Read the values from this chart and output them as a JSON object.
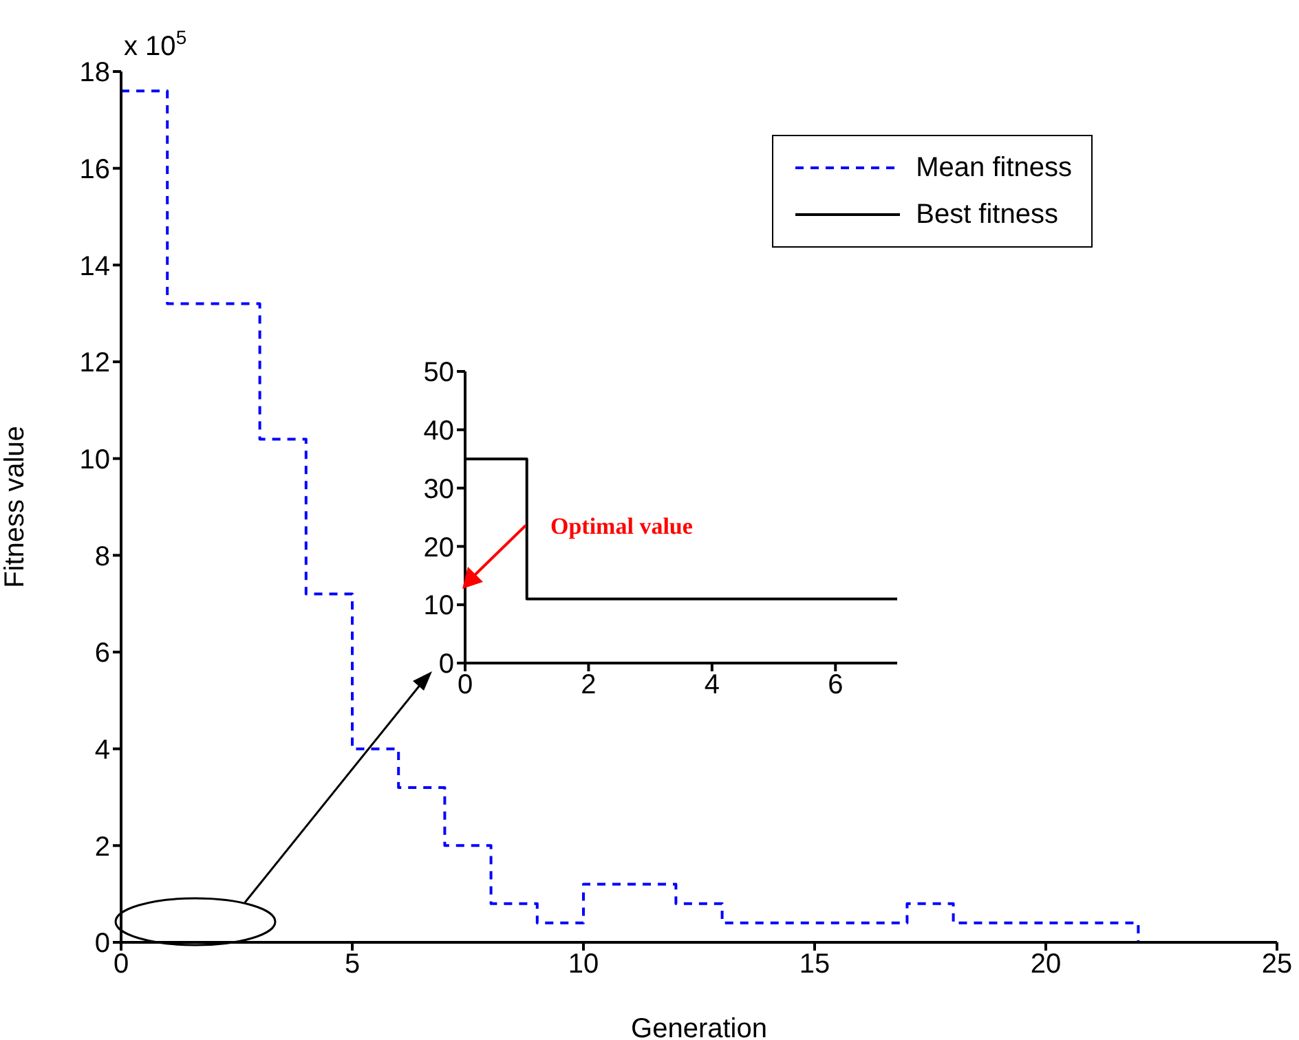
{
  "chart_data": [
    {
      "type": "step",
      "xlabel": "Generation",
      "ylabel": "Fitness value",
      "annotations": [
        "x 10$^{5}$"
      ],
      "xlim": [
        0,
        25
      ],
      "xticks": [
        0,
        5,
        10,
        15,
        20,
        25
      ],
      "ylim": [
        0,
        18
      ],
      "yticks": [
        0,
        2,
        4,
        6,
        8,
        10,
        12,
        14,
        16,
        18
      ],
      "legend": "top right",
      "grid": false,
      "series": [
        {
          "name": "Mean fitness",
          "color": "#0000ff",
          "line_style": "dashed",
          "x": [
            0,
            1,
            3,
            4,
            5,
            6,
            7,
            8,
            9,
            10,
            12,
            13,
            17,
            18,
            22
          ],
          "values": [
            17.6,
            13.2,
            10.4,
            7.2,
            4.0,
            3.2,
            2.0,
            0.8,
            0.4,
            1.2,
            0.8,
            0.4,
            0.8,
            0.4,
            0
          ]
        },
        {
          "name": "Best fitness",
          "color": "#000000",
          "line_style": "solid",
          "x": [
            0,
            25
          ],
          "values": [
            0,
            0
          ]
        }
      ]
    },
    {
      "type": "step",
      "annotations": [
        "Optimal value"
      ],
      "xlim": [
        0,
        7
      ],
      "xticks": [
        0,
        2,
        4,
        6
      ],
      "ylim": [
        0,
        50
      ],
      "yticks": [
        0,
        10,
        20,
        30,
        40,
        50
      ],
      "grid": false,
      "legend": false,
      "series": [
        {
          "color": "#000000",
          "line_style": "solid",
          "x": [
            0,
            1,
            7
          ],
          "values": [
            35,
            11,
            11
          ]
        }
      ]
    }
  ]
}
